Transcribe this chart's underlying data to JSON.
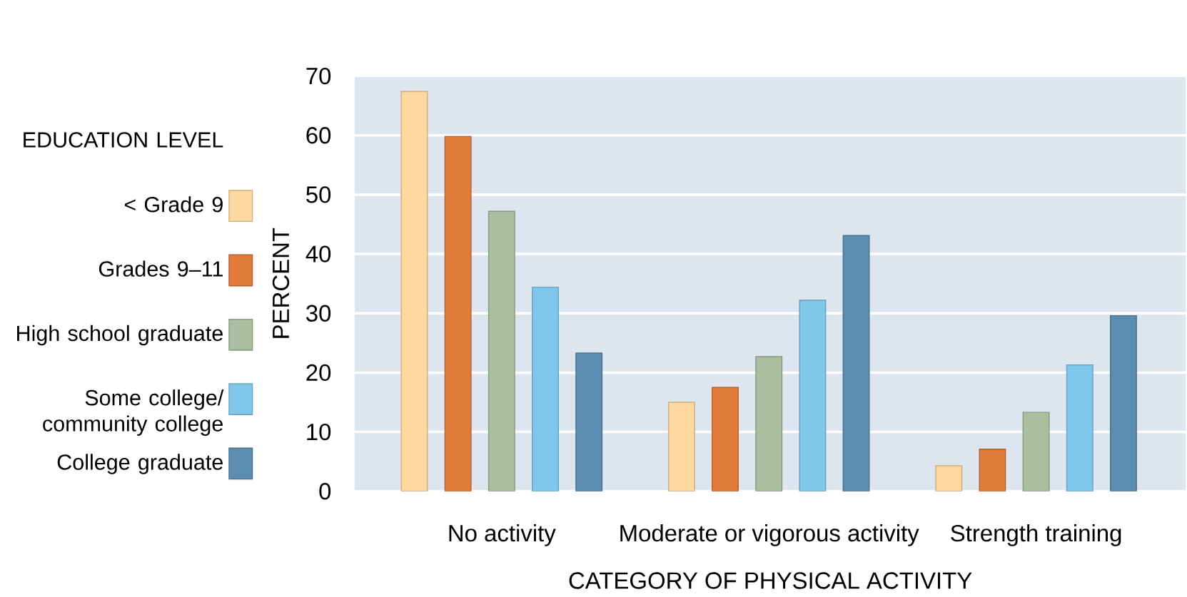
{
  "chart_data": {
    "type": "bar",
    "xlabel": "CATEGORY OF PHYSICAL ACTIVITY",
    "ylabel": "PERCENT",
    "legend_title": "EDUCATION LEVEL",
    "categories": [
      "No activity",
      "Moderate or vigorous activity",
      "Strength training"
    ],
    "series": [
      {
        "name": "< Grade 9",
        "color": "#fdd9a0",
        "values": [
          67.4,
          15.0,
          4.3
        ]
      },
      {
        "name": "Grades 9–11",
        "color": "#e07b39",
        "values": [
          59.8,
          17.5,
          7.1
        ]
      },
      {
        "name": "High school graduate",
        "color": "#a9bfa0",
        "values": [
          47.2,
          22.7,
          13.3
        ]
      },
      {
        "name": "Some college/ community college",
        "color": "#7fc8ec",
        "values": [
          34.4,
          32.2,
          21.3
        ]
      },
      {
        "name": "College graduate",
        "color": "#5b8db0",
        "values": [
          23.3,
          43.1,
          29.6
        ]
      }
    ],
    "ylim": [
      0,
      70
    ],
    "yticks": [
      0,
      10,
      20,
      30,
      40,
      50,
      60,
      70
    ],
    "grid": "y",
    "legend": "left"
  }
}
